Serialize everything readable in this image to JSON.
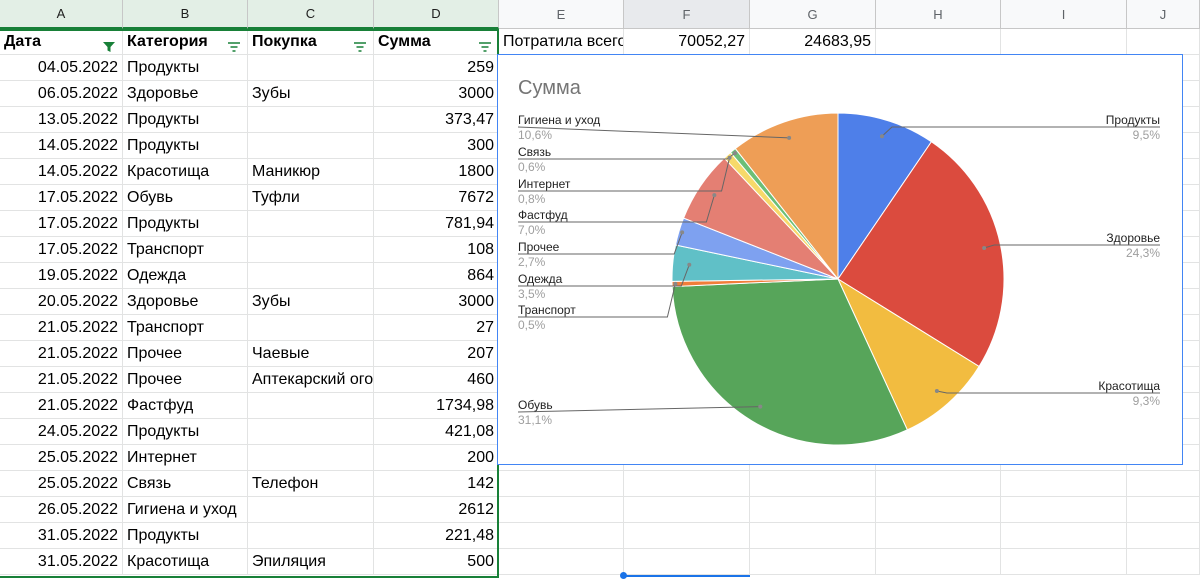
{
  "columns": [
    "A",
    "B",
    "C",
    "D",
    "E",
    "F",
    "G",
    "H",
    "I",
    "J"
  ],
  "headers": {
    "date": "Дата",
    "category": "Категория",
    "purchase": "Покупка",
    "sum": "Сумма"
  },
  "summary": {
    "label": "Потратила всего",
    "total": "70052,27",
    "other": "24683,95"
  },
  "rows": [
    {
      "date": "04.05.2022",
      "category": "Продукты",
      "purchase": "",
      "sum": "259"
    },
    {
      "date": "06.05.2022",
      "category": "Здоровье",
      "purchase": "Зубы",
      "sum": "3000"
    },
    {
      "date": "13.05.2022",
      "category": "Продукты",
      "purchase": "",
      "sum": "373,47"
    },
    {
      "date": "14.05.2022",
      "category": "Продукты",
      "purchase": "",
      "sum": "300"
    },
    {
      "date": "14.05.2022",
      "category": "Красотища",
      "purchase": "Маникюр",
      "sum": "1800"
    },
    {
      "date": "17.05.2022",
      "category": "Обувь",
      "purchase": "Туфли",
      "sum": "7672"
    },
    {
      "date": "17.05.2022",
      "category": "Продукты",
      "purchase": "",
      "sum": "781,94"
    },
    {
      "date": "17.05.2022",
      "category": "Транспорт",
      "purchase": "",
      "sum": "108"
    },
    {
      "date": "19.05.2022",
      "category": "Одежда",
      "purchase": "",
      "sum": "864"
    },
    {
      "date": "20.05.2022",
      "category": "Здоровье",
      "purchase": "Зубы",
      "sum": "3000"
    },
    {
      "date": "21.05.2022",
      "category": "Транспорт",
      "purchase": "",
      "sum": "27"
    },
    {
      "date": "21.05.2022",
      "category": "Прочее",
      "purchase": "Чаевые",
      "sum": "207"
    },
    {
      "date": "21.05.2022",
      "category": "Прочее",
      "purchase": "Аптекарский ого",
      "sum": "460"
    },
    {
      "date": "21.05.2022",
      "category": "Фастфуд",
      "purchase": "",
      "sum": "1734,98"
    },
    {
      "date": "24.05.2022",
      "category": "Продукты",
      "purchase": "",
      "sum": "421,08"
    },
    {
      "date": "25.05.2022",
      "category": "Интернет",
      "purchase": "",
      "sum": "200"
    },
    {
      "date": "25.05.2022",
      "category": "Связь",
      "purchase": "Телефон",
      "sum": "142"
    },
    {
      "date": "26.05.2022",
      "category": "Гигиена и уход",
      "purchase": "",
      "sum": "2612"
    },
    {
      "date": "31.05.2022",
      "category": "Продукты",
      "purchase": "",
      "sum": "221,48"
    },
    {
      "date": "31.05.2022",
      "category": "Красотища",
      "purchase": "Эпиляция",
      "sum": "500"
    }
  ],
  "chart_data": {
    "type": "pie",
    "title": "Сумма",
    "slices": [
      {
        "label": "Продукты",
        "pct_text": "9,5%",
        "value": 9.5,
        "color": "#4e7fe9"
      },
      {
        "label": "Здоровье",
        "pct_text": "24,3%",
        "value": 24.3,
        "color": "#db4b3e"
      },
      {
        "label": "Красотища",
        "pct_text": "9,3%",
        "value": 9.3,
        "color": "#f2bc40"
      },
      {
        "label": "Обувь",
        "pct_text": "31,1%",
        "value": 31.1,
        "color": "#57a55a"
      },
      {
        "label": "Транспорт",
        "pct_text": "0,5%",
        "value": 0.5,
        "color": "#f17d3a"
      },
      {
        "label": "Одежда",
        "pct_text": "3,5%",
        "value": 3.5,
        "color": "#60c0c7"
      },
      {
        "label": "Прочее",
        "pct_text": "2,7%",
        "value": 2.7,
        "color": "#7ea1f0"
      },
      {
        "label": "Фастфуд",
        "pct_text": "7,0%",
        "value": 7.0,
        "color": "#e47f73"
      },
      {
        "label": "Интернет",
        "pct_text": "0,8%",
        "value": 0.8,
        "color": "#f7d96a"
      },
      {
        "label": "Связь",
        "pct_text": "0,6%",
        "value": 0.6,
        "color": "#6cbf77"
      },
      {
        "label": "Гигиена и уход",
        "pct_text": "10,6%",
        "value": 10.6,
        "color": "#ee9e56"
      }
    ]
  }
}
